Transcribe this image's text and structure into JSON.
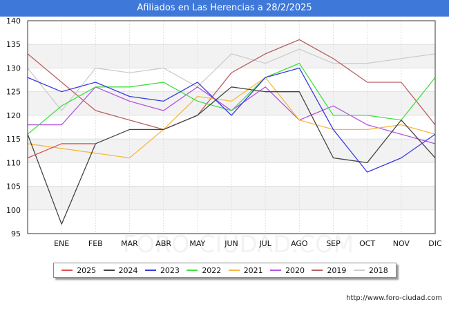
{
  "header": {
    "title": "Afiliados en Las Herencias a 28/2/2025"
  },
  "footer": {
    "url": "http://www.foro-ciudad.com"
  },
  "watermark": "FORO-CIUDAD.COM",
  "chart_data": {
    "type": "line",
    "title": "Afiliados en Las Herencias a 28/2/2025",
    "xlabel": "",
    "ylabel": "",
    "categories": [
      "",
      "ENE",
      "FEB",
      "MAR",
      "ABR",
      "MAY",
      "JUN",
      "JUL",
      "AGO",
      "SEP",
      "OCT",
      "NOV",
      "DIC"
    ],
    "ylim": [
      95,
      140
    ],
    "yticks": [
      95,
      100,
      105,
      110,
      115,
      120,
      125,
      130,
      135,
      140
    ],
    "grid": true,
    "legend_position": "bottom",
    "series": [
      {
        "name": "2025",
        "color": "#e05050",
        "values": [
          111,
          114,
          114,
          null,
          null,
          null,
          null,
          null,
          null,
          null,
          null,
          null,
          null
        ]
      },
      {
        "name": "2024",
        "color": "#444444",
        "values": [
          116,
          97,
          114,
          117,
          117,
          120,
          126,
          125,
          125,
          111,
          110,
          119,
          111
        ]
      },
      {
        "name": "2023",
        "color": "#3a3ae0",
        "values": [
          128,
          125,
          127,
          124,
          123,
          127,
          120,
          128,
          130,
          117,
          108,
          111,
          116
        ]
      },
      {
        "name": "2022",
        "color": "#40e040",
        "values": [
          116,
          122,
          126,
          126,
          127,
          123,
          121,
          128,
          131,
          120,
          120,
          119,
          128
        ]
      },
      {
        "name": "2021",
        "color": "#f5b841",
        "values": [
          114,
          113,
          112,
          111,
          117,
          124,
          123,
          128,
          119,
          117,
          117,
          118,
          116
        ]
      },
      {
        "name": "2020",
        "color": "#b455e0",
        "values": [
          118,
          118,
          126,
          123,
          121,
          126,
          121,
          126,
          119,
          122,
          118,
          116,
          114
        ]
      },
      {
        "name": "2019",
        "color": "#b86060",
        "values": [
          133,
          127,
          121,
          119,
          117,
          120,
          129,
          133,
          136,
          132,
          127,
          127,
          118
        ]
      },
      {
        "name": "2018",
        "color": "#cccccc",
        "values": [
          130,
          121,
          130,
          129,
          130,
          126,
          133,
          131,
          134,
          131,
          131,
          132,
          133
        ]
      }
    ]
  }
}
